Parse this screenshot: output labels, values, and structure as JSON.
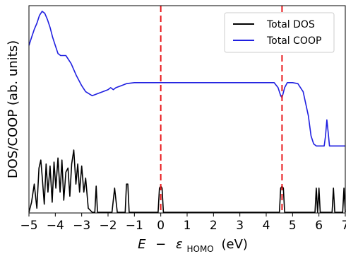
{
  "chart_data": {
    "type": "line",
    "xlabel_parts": {
      "var": "E",
      "minus": "−",
      "eps": "ε",
      "sub": "HOMO",
      "unit": "(eV)"
    },
    "ylabel": "DOS/COOP (ab. units)",
    "xlim": [
      -5,
      7
    ],
    "ylim": [
      0,
      1
    ],
    "xticks": [
      -5,
      -4,
      -3,
      -2,
      -1,
      0,
      1,
      2,
      3,
      4,
      5,
      6,
      7
    ],
    "xtick_labels": [
      "−5",
      "−4",
      "−3",
      "−2",
      "−1",
      "0",
      "1",
      "2",
      "3",
      "4",
      "5",
      "6",
      "7"
    ],
    "yticks_shown": false,
    "legend": {
      "position": "top-right",
      "entries": [
        "Total DOS",
        "Total COOP"
      ]
    },
    "vlines": [
      {
        "x": 0.0,
        "color": "#e8191c",
        "style": "dashed"
      },
      {
        "x": 4.6,
        "color": "#e8191c",
        "style": "dashed"
      }
    ],
    "series": [
      {
        "name": "Total DOS",
        "color": "#000000",
        "x": [
          -5.0,
          -4.9,
          -4.8,
          -4.7,
          -4.62,
          -4.55,
          -4.5,
          -4.42,
          -4.35,
          -4.28,
          -4.2,
          -4.12,
          -4.05,
          -3.98,
          -3.9,
          -3.82,
          -3.75,
          -3.68,
          -3.6,
          -3.52,
          -3.45,
          -3.38,
          -3.3,
          -3.22,
          -3.15,
          -3.08,
          -3.0,
          -2.92,
          -2.85,
          -2.75,
          -2.6,
          -2.5,
          -2.45,
          -2.4,
          -2.3,
          -2.0,
          -1.85,
          -1.75,
          -1.65,
          -1.5,
          -1.35,
          -1.3,
          -1.25,
          -1.2,
          -1.1,
          -0.1,
          -0.05,
          0.0,
          0.05,
          0.1,
          4.5,
          4.55,
          4.6,
          4.65,
          4.7,
          5.85,
          5.9,
          5.95,
          6.0,
          6.05,
          6.1,
          6.15,
          6.5,
          6.55,
          6.6,
          6.65,
          6.9,
          6.95,
          7.0
        ],
        "y": [
          0.0,
          0.05,
          0.14,
          0.02,
          0.22,
          0.26,
          0.18,
          0.04,
          0.24,
          0.1,
          0.23,
          0.05,
          0.25,
          0.12,
          0.27,
          0.1,
          0.26,
          0.06,
          0.2,
          0.22,
          0.08,
          0.24,
          0.31,
          0.14,
          0.24,
          0.1,
          0.23,
          0.1,
          0.17,
          0.02,
          0.0,
          0.0,
          0.13,
          0.0,
          0.0,
          0.0,
          0.0,
          0.12,
          0.0,
          0.0,
          0.0,
          0.14,
          0.14,
          0.0,
          0.0,
          0.0,
          0.12,
          0.13,
          0.12,
          0.0,
          0.0,
          0.12,
          0.13,
          0.12,
          0.0,
          0.0,
          0.12,
          0.0,
          0.12,
          0.0,
          0.0,
          0.0,
          0.0,
          0.12,
          0.0,
          0.0,
          0.0,
          0.12,
          0.0
        ]
      },
      {
        "name": "Total COOP",
        "color": "#1f1fe0",
        "x": [
          -5.0,
          -4.9,
          -4.8,
          -4.7,
          -4.6,
          -4.5,
          -4.4,
          -4.3,
          -4.2,
          -4.1,
          -4.0,
          -3.9,
          -3.8,
          -3.6,
          -3.4,
          -3.2,
          -3.0,
          -2.85,
          -2.6,
          -2.4,
          -2.2,
          -2.0,
          -1.9,
          -1.8,
          -1.7,
          -1.5,
          -1.3,
          -1.0,
          -0.5,
          0.0,
          1.0,
          2.0,
          3.0,
          4.0,
          4.3,
          4.45,
          4.55,
          4.6,
          4.7,
          4.8,
          5.0,
          5.2,
          5.4,
          5.6,
          5.7,
          5.8,
          5.9,
          6.0,
          6.1,
          6.2,
          6.25,
          6.3,
          6.35,
          6.4,
          6.5,
          7.0
        ],
        "y": [
          0.83,
          0.87,
          0.91,
          0.94,
          0.98,
          1.0,
          0.99,
          0.96,
          0.92,
          0.87,
          0.83,
          0.79,
          0.78,
          0.78,
          0.74,
          0.68,
          0.63,
          0.6,
          0.58,
          0.59,
          0.6,
          0.61,
          0.62,
          0.61,
          0.62,
          0.63,
          0.64,
          0.645,
          0.645,
          0.645,
          0.645,
          0.645,
          0.645,
          0.645,
          0.645,
          0.62,
          0.58,
          0.57,
          0.62,
          0.645,
          0.645,
          0.64,
          0.6,
          0.48,
          0.38,
          0.34,
          0.33,
          0.33,
          0.33,
          0.33,
          0.38,
          0.46,
          0.4,
          0.33,
          0.33,
          0.33
        ]
      }
    ]
  }
}
